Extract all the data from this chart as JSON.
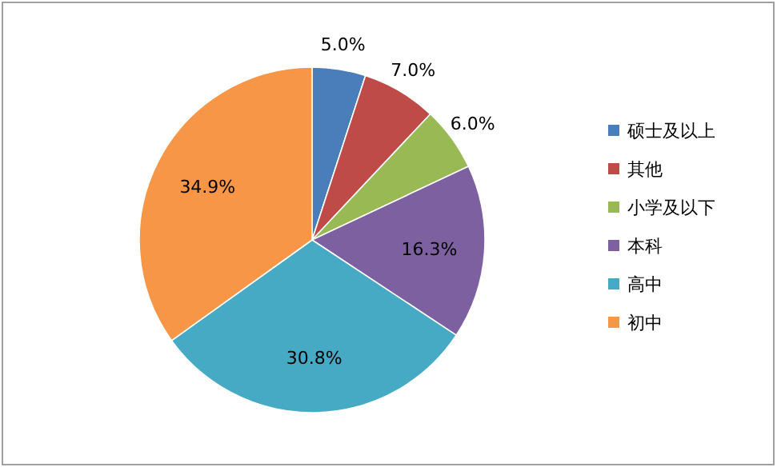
{
  "chart_data": {
    "type": "pie",
    "categories": [
      "硕士及以上",
      "其他",
      "小学及以下",
      "本科",
      "高中",
      "初中"
    ],
    "values": [
      5.0,
      7.0,
      6.0,
      16.3,
      30.8,
      34.9
    ],
    "colors": [
      "#4a7ebb",
      "#be4b48",
      "#98b954",
      "#7d60a0",
      "#46aac5",
      "#f79646"
    ],
    "value_labels": [
      "5.0%",
      "7.0%",
      "6.0%",
      "16.3%",
      "30.8%",
      "34.9%"
    ],
    "legend": "right"
  }
}
